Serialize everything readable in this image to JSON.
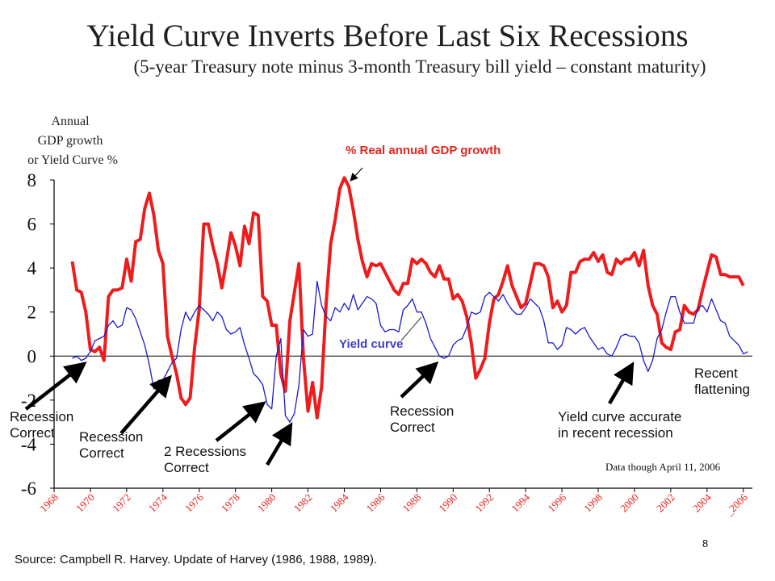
{
  "title": "Yield Curve Inverts Before Last Six Recessions",
  "subtitle": "(5-year Treasury note minus 3-month Treasury bill yield – constant maturity)",
  "y_axis_title": [
    "Annual",
    "GDP growth",
    "or Yield Curve %"
  ],
  "annotations": {
    "gdp_label": "% Real annual GDP growth",
    "yield_label": "Yield curve",
    "rec1": [
      "Recession",
      "Correct"
    ],
    "rec2": [
      "Recession",
      "Correct"
    ],
    "rec3": [
      "2 Recessions",
      "Correct"
    ],
    "rec4": [
      "Recession",
      "Correct"
    ],
    "rec5": [
      "Yield curve accurate",
      "in recent recession"
    ],
    "recent": [
      "Recent",
      "flattening"
    ],
    "data_note": "Data though April 11, 2006"
  },
  "source": "Source: Campbell R. Harvey. Update of Harvey (1986, 1988, 1989).",
  "page_number": "8",
  "colors": {
    "gdp": "#ee1c1c",
    "yield": "#1a1acc",
    "arrow": "#000000"
  },
  "chart_data": {
    "type": "line",
    "title": "Yield Curve Inverts Before Last Six Recessions",
    "ylabel": "Annual GDP growth or Yield Curve %",
    "xlabel": "",
    "ylim": [
      -6,
      8
    ],
    "xlim": [
      1968,
      2006.5
    ],
    "yticks": [
      -6,
      -4,
      -2,
      0,
      2,
      4,
      6,
      8
    ],
    "xticks": [
      1968,
      1970,
      1972,
      1974,
      1976,
      1978,
      1980,
      1982,
      1984,
      1986,
      1988,
      1990,
      1992,
      1994,
      1996,
      1998,
      2000,
      2002,
      2004,
      2006
    ],
    "xtick_labels": [
      "1968",
      "1970",
      "1972",
      "1974",
      "1976",
      "1978",
      "1980",
      "1982",
      "1984",
      "1986",
      "1988",
      "1990",
      "1992",
      "1994",
      "1996",
      "1998",
      "2000",
      "2002",
      "2004",
      "_2006"
    ],
    "series": [
      {
        "name": "% Real annual GDP growth",
        "x": [
          1969.0,
          1969.25,
          1969.5,
          1969.75,
          1970.0,
          1970.25,
          1970.5,
          1970.75,
          1971.0,
          1971.25,
          1971.5,
          1971.75,
          1972.0,
          1972.25,
          1972.5,
          1972.75,
          1973.0,
          1973.25,
          1973.5,
          1973.75,
          1974.0,
          1974.25,
          1974.5,
          1974.75,
          1975.0,
          1975.25,
          1975.5,
          1975.75,
          1976.0,
          1976.25,
          1976.5,
          1976.75,
          1977.0,
          1977.25,
          1977.5,
          1977.75,
          1978.0,
          1978.25,
          1978.5,
          1978.75,
          1979.0,
          1979.25,
          1979.5,
          1979.75,
          1980.0,
          1980.25,
          1980.5,
          1980.75,
          1981.0,
          1981.25,
          1981.5,
          1981.75,
          1982.0,
          1982.25,
          1982.5,
          1982.75,
          1983.0,
          1983.25,
          1983.5,
          1983.75,
          1984.0,
          1984.25,
          1984.5,
          1984.75,
          1985.0,
          1985.25,
          1985.5,
          1985.75,
          1986.0,
          1986.25,
          1986.5,
          1986.75,
          1987.0,
          1987.25,
          1987.5,
          1987.75,
          1988.0,
          1988.25,
          1988.5,
          1988.75,
          1989.0,
          1989.25,
          1989.5,
          1989.75,
          1990.0,
          1990.25,
          1990.5,
          1990.75,
          1991.0,
          1991.25,
          1991.5,
          1991.75,
          1992.0,
          1992.25,
          1992.5,
          1992.75,
          1993.0,
          1993.25,
          1993.5,
          1993.75,
          1994.0,
          1994.25,
          1994.5,
          1994.75,
          1995.0,
          1995.25,
          1995.5,
          1995.75,
          1996.0,
          1996.25,
          1996.5,
          1996.75,
          1997.0,
          1997.25,
          1997.5,
          1997.75,
          1998.0,
          1998.25,
          1998.5,
          1998.75,
          1999.0,
          1999.25,
          1999.5,
          1999.75,
          2000.0,
          2000.25,
          2000.5,
          2000.75,
          2001.0,
          2001.25,
          2001.5,
          2001.75,
          2002.0,
          2002.25,
          2002.5,
          2002.75,
          2003.0,
          2003.25,
          2003.5,
          2003.75,
          2004.0,
          2004.25,
          2004.5,
          2004.75,
          2005.0,
          2005.25,
          2005.5,
          2005.75,
          2006.0
        ],
        "values": [
          4.3,
          3.0,
          2.9,
          2.0,
          0.3,
          0.2,
          0.4,
          -0.2,
          2.7,
          3.0,
          3.0,
          3.1,
          4.4,
          3.4,
          5.2,
          5.3,
          6.7,
          7.4,
          6.4,
          4.8,
          4.2,
          0.9,
          0.0,
          -0.8,
          -1.9,
          -2.2,
          -1.9,
          0.4,
          2.1,
          6.0,
          6.0,
          5.0,
          4.2,
          3.1,
          4.3,
          5.6,
          5.0,
          4.1,
          5.9,
          5.1,
          6.5,
          6.4,
          2.7,
          2.5,
          1.4,
          1.4,
          -0.8,
          -1.6,
          1.6,
          2.9,
          4.2,
          -0.1,
          -2.5,
          -1.2,
          -2.8,
          -1.4,
          2.4,
          5.1,
          6.2,
          7.6,
          8.1,
          7.7,
          6.6,
          5.3,
          4.3,
          3.6,
          4.2,
          4.1,
          4.2,
          3.8,
          3.4,
          3.0,
          2.8,
          3.3,
          3.3,
          4.4,
          4.2,
          4.4,
          4.2,
          3.8,
          3.6,
          4.1,
          3.5,
          3.5,
          2.6,
          2.8,
          2.5,
          1.8,
          0.6,
          -1.0,
          -0.6,
          -0.1,
          1.5,
          2.6,
          2.8,
          3.4,
          4.1,
          3.2,
          2.7,
          2.2,
          2.4,
          3.3,
          4.2,
          4.2,
          4.1,
          3.6,
          2.2,
          2.5,
          2.0,
          2.3,
          3.8,
          3.8,
          4.3,
          4.4,
          4.4,
          4.7,
          4.3,
          4.6,
          3.8,
          3.7,
          4.4,
          4.2,
          4.4,
          4.4,
          4.7,
          4.1,
          4.8,
          3.2,
          2.3,
          1.9,
          0.6,
          0.4,
          0.3,
          1.1,
          1.2,
          2.3,
          2.0,
          1.9,
          2.1,
          3.0,
          3.8,
          4.6,
          4.5,
          3.7,
          3.7,
          3.6,
          3.6,
          3.6,
          3.2
        ]
      },
      {
        "name": "Yield curve",
        "x": [
          1969.0,
          1969.25,
          1969.5,
          1969.75,
          1970.0,
          1970.25,
          1970.5,
          1970.75,
          1971.0,
          1971.25,
          1971.5,
          1971.75,
          1972.0,
          1972.25,
          1972.5,
          1972.75,
          1973.0,
          1973.25,
          1973.5,
          1973.75,
          1974.0,
          1974.25,
          1974.5,
          1974.75,
          1975.0,
          1975.25,
          1975.5,
          1975.75,
          1976.0,
          1976.25,
          1976.5,
          1976.75,
          1977.0,
          1977.25,
          1977.5,
          1977.75,
          1978.0,
          1978.25,
          1978.5,
          1978.75,
          1979.0,
          1979.25,
          1979.5,
          1979.75,
          1980.0,
          1980.25,
          1980.5,
          1980.75,
          1981.0,
          1981.25,
          1981.5,
          1981.75,
          1982.0,
          1982.25,
          1982.5,
          1982.75,
          1983.0,
          1983.25,
          1983.5,
          1983.75,
          1984.0,
          1984.25,
          1984.5,
          1984.75,
          1985.0,
          1985.25,
          1985.5,
          1985.75,
          1986.0,
          1986.25,
          1986.5,
          1986.75,
          1987.0,
          1987.25,
          1987.5,
          1987.75,
          1988.0,
          1988.25,
          1988.5,
          1988.75,
          1989.0,
          1989.25,
          1989.5,
          1989.75,
          1990.0,
          1990.25,
          1990.5,
          1990.75,
          1991.0,
          1991.25,
          1991.5,
          1991.75,
          1992.0,
          1992.25,
          1992.5,
          1992.75,
          1993.0,
          1993.25,
          1993.5,
          1993.75,
          1994.0,
          1994.25,
          1994.5,
          1994.75,
          1995.0,
          1995.25,
          1995.5,
          1995.75,
          1996.0,
          1996.25,
          1996.5,
          1996.75,
          1997.0,
          1997.25,
          1997.5,
          1997.75,
          1998.0,
          1998.25,
          1998.5,
          1998.75,
          1999.0,
          1999.25,
          1999.5,
          1999.75,
          2000.0,
          2000.25,
          2000.5,
          2000.75,
          2001.0,
          2001.25,
          2001.5,
          2001.75,
          2002.0,
          2002.25,
          2002.5,
          2002.75,
          2003.0,
          2003.25,
          2003.5,
          2003.75,
          2004.0,
          2004.25,
          2004.5,
          2004.75,
          2005.0,
          2005.25,
          2005.5,
          2005.75,
          2006.0,
          2006.25
        ],
        "values": [
          -0.1,
          0.0,
          -0.2,
          -0.1,
          0.2,
          0.7,
          0.8,
          0.9,
          1.4,
          1.6,
          1.3,
          1.4,
          2.2,
          2.1,
          1.7,
          1.1,
          0.5,
          -0.4,
          -1.5,
          -1.1,
          -1.1,
          -0.7,
          -0.3,
          -0.1,
          1.2,
          2.0,
          1.6,
          2.0,
          2.3,
          2.1,
          1.9,
          1.6,
          2.0,
          1.8,
          1.2,
          1.0,
          1.1,
          1.3,
          0.5,
          -0.1,
          -0.8,
          -1.0,
          -1.3,
          -2.2,
          -2.4,
          0.0,
          0.8,
          -2.7,
          -3.0,
          -2.6,
          -1.3,
          1.2,
          0.9,
          1.0,
          3.4,
          2.3,
          1.8,
          1.6,
          2.2,
          2.0,
          2.4,
          2.1,
          2.8,
          2.1,
          2.4,
          2.7,
          2.6,
          2.4,
          1.4,
          1.1,
          1.2,
          1.2,
          1.1,
          2.1,
          2.3,
          2.6,
          2.0,
          2.0,
          1.5,
          0.8,
          0.4,
          0.0,
          -0.1,
          0.0,
          0.5,
          0.7,
          0.8,
          1.3,
          2.0,
          1.9,
          2.0,
          2.7,
          2.9,
          2.7,
          2.5,
          2.8,
          2.4,
          2.1,
          1.9,
          1.9,
          2.2,
          2.6,
          2.4,
          2.2,
          1.6,
          0.6,
          0.6,
          0.3,
          0.5,
          1.3,
          1.2,
          1.0,
          1.2,
          1.3,
          0.9,
          0.6,
          0.3,
          0.4,
          0.1,
          0.0,
          0.4,
          0.9,
          1.0,
          0.9,
          0.9,
          0.6,
          -0.2,
          -0.7,
          -0.2,
          0.8,
          1.2,
          2.0,
          2.7,
          2.7,
          2.0,
          1.5,
          1.5,
          1.5,
          2.2,
          2.3,
          2.0,
          2.6,
          2.1,
          1.6,
          1.5,
          0.9,
          0.7,
          0.5,
          0.1,
          0.2
        ]
      }
    ]
  }
}
